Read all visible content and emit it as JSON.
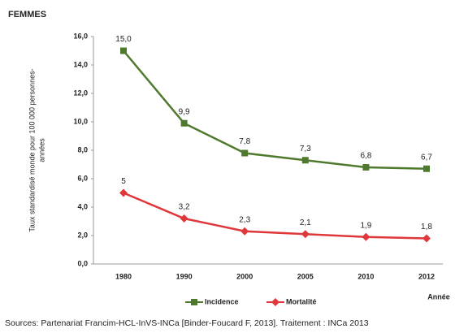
{
  "chart_data": {
    "type": "line",
    "title": "FEMMES",
    "y_label": [
      "Taux standardisé monde pour 100 000 personnes-",
      "années"
    ],
    "x_label": "Année",
    "categories": [
      "1980",
      "1990",
      "2000",
      "2005",
      "2010",
      "2012"
    ],
    "series": [
      {
        "name": "Incidence",
        "color": "#4f7a2e",
        "marker": "square",
        "values": [
          15.0,
          9.9,
          7.8,
          7.3,
          6.8,
          6.7
        ],
        "value_labels": [
          "15,0",
          "9,9",
          "7,8",
          "7,3",
          "6,8",
          "6,7"
        ]
      },
      {
        "name": "Mortalité",
        "color": "#e0383a",
        "marker": "diamond",
        "values": [
          5,
          3.2,
          2.3,
          2.1,
          1.9,
          1.8
        ],
        "value_labels": [
          "5",
          "3,2",
          "2,3",
          "2,1",
          "1,9",
          "1,8"
        ]
      }
    ],
    "ylim": [
      0,
      16
    ],
    "yticks": [
      {
        "value": 0,
        "label": "0,0"
      },
      {
        "value": 2,
        "label": "2,0"
      },
      {
        "value": 4,
        "label": "4,0"
      },
      {
        "value": 6,
        "label": "6,0"
      },
      {
        "value": 8,
        "label": "8,0"
      },
      {
        "value": 10,
        "label": "10,0"
      },
      {
        "value": 12,
        "label": "12,0"
      },
      {
        "value": 14,
        "label": "14,0"
      },
      {
        "value": 16,
        "label": "16,0"
      }
    ],
    "grid": false,
    "legend": "bottom",
    "source": "Sources: Partenariat Francim-HCL-InVS-INCa [Binder-Foucard F, 2013]. Traitement : INCa 2013"
  }
}
